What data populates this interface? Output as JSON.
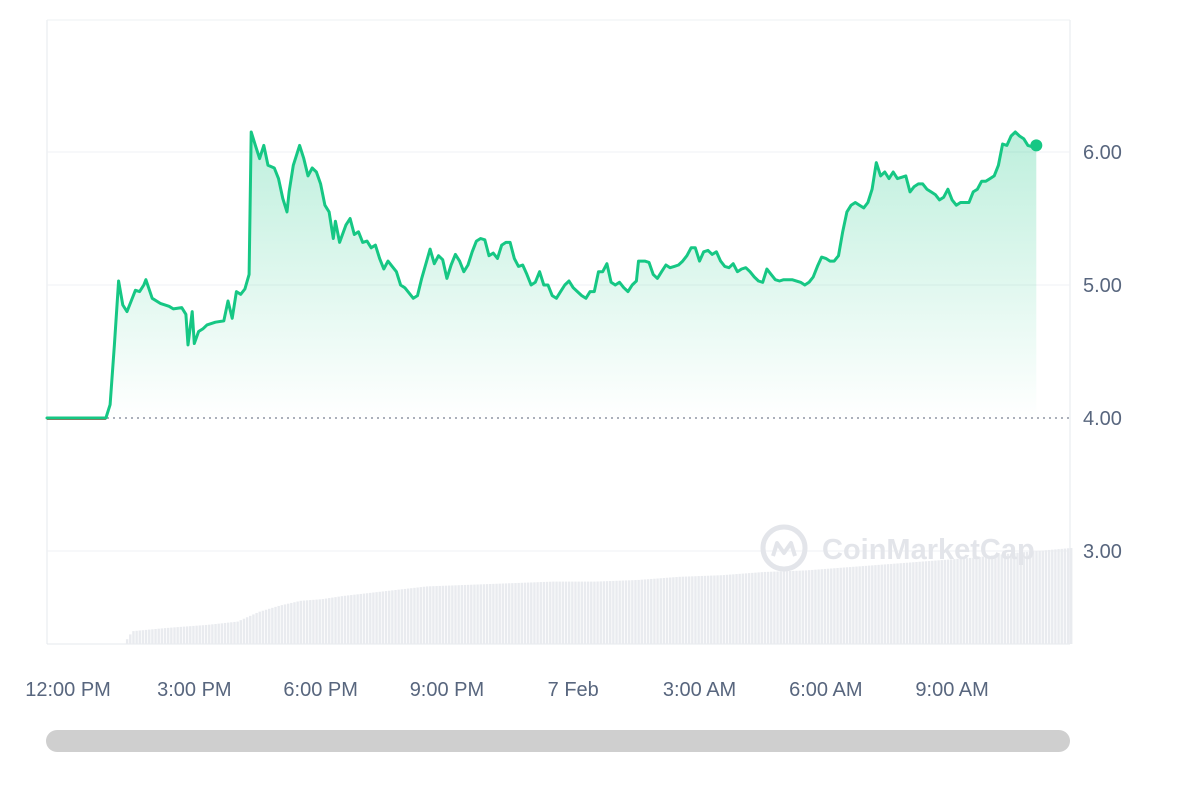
{
  "chart_data": {
    "type": "area",
    "watermark": "CoinMarketCap",
    "y_ticks": [
      "3.00",
      "4.00",
      "5.00",
      "6.00"
    ],
    "x_ticks": [
      "12:00 PM",
      "3:00 PM",
      "6:00 PM",
      "9:00 PM",
      "7 Feb",
      "3:00 AM",
      "6:00 AM",
      "9:00 AM"
    ],
    "ylim": [
      2.3,
      7.0
    ],
    "x_range_hours": [
      11.5,
      35.8
    ],
    "baseline": 4.0,
    "series": [
      {
        "values": [
          [
            11.5,
            4.0
          ],
          [
            12.0,
            4.0
          ],
          [
            12.5,
            4.0
          ],
          [
            12.9,
            4.0
          ],
          [
            13.0,
            4.1
          ],
          [
            13.1,
            4.55
          ],
          [
            13.2,
            5.03
          ],
          [
            13.3,
            4.85
          ],
          [
            13.4,
            4.8
          ],
          [
            13.5,
            4.88
          ],
          [
            13.6,
            4.96
          ],
          [
            13.7,
            4.95
          ],
          [
            13.8,
            5.0
          ],
          [
            13.85,
            5.04
          ],
          [
            14.0,
            4.9
          ],
          [
            14.2,
            4.86
          ],
          [
            14.4,
            4.84
          ],
          [
            14.5,
            4.82
          ],
          [
            14.7,
            4.83
          ],
          [
            14.8,
            4.78
          ],
          [
            14.85,
            4.55
          ],
          [
            14.95,
            4.8
          ],
          [
            15.0,
            4.56
          ],
          [
            15.1,
            4.65
          ],
          [
            15.2,
            4.67
          ],
          [
            15.3,
            4.7
          ],
          [
            15.5,
            4.72
          ],
          [
            15.7,
            4.73
          ],
          [
            15.8,
            4.88
          ],
          [
            15.9,
            4.75
          ],
          [
            16.0,
            4.95
          ],
          [
            16.1,
            4.93
          ],
          [
            16.2,
            4.97
          ],
          [
            16.3,
            5.08
          ],
          [
            16.35,
            6.15
          ],
          [
            16.45,
            6.05
          ],
          [
            16.55,
            5.95
          ],
          [
            16.65,
            6.05
          ],
          [
            16.75,
            5.9
          ],
          [
            16.9,
            5.88
          ],
          [
            17.0,
            5.8
          ],
          [
            17.1,
            5.65
          ],
          [
            17.2,
            5.55
          ],
          [
            17.25,
            5.7
          ],
          [
            17.35,
            5.9
          ],
          [
            17.5,
            6.05
          ],
          [
            17.6,
            5.95
          ],
          [
            17.7,
            5.82
          ],
          [
            17.8,
            5.88
          ],
          [
            17.9,
            5.85
          ],
          [
            18.0,
            5.76
          ],
          [
            18.1,
            5.6
          ],
          [
            18.2,
            5.55
          ],
          [
            18.3,
            5.35
          ],
          [
            18.35,
            5.48
          ],
          [
            18.45,
            5.32
          ],
          [
            18.6,
            5.45
          ],
          [
            18.7,
            5.5
          ],
          [
            18.8,
            5.38
          ],
          [
            18.9,
            5.4
          ],
          [
            19.0,
            5.32
          ],
          [
            19.1,
            5.33
          ],
          [
            19.2,
            5.28
          ],
          [
            19.3,
            5.3
          ],
          [
            19.4,
            5.2
          ],
          [
            19.5,
            5.12
          ],
          [
            19.6,
            5.18
          ],
          [
            19.7,
            5.14
          ],
          [
            19.8,
            5.1
          ],
          [
            19.9,
            5.0
          ],
          [
            20.0,
            4.98
          ],
          [
            20.2,
            4.9
          ],
          [
            20.3,
            4.92
          ],
          [
            20.4,
            5.05
          ],
          [
            20.6,
            5.27
          ],
          [
            20.7,
            5.16
          ],
          [
            20.8,
            5.22
          ],
          [
            20.9,
            5.19
          ],
          [
            21.0,
            5.05
          ],
          [
            21.1,
            5.15
          ],
          [
            21.2,
            5.23
          ],
          [
            21.3,
            5.18
          ],
          [
            21.4,
            5.1
          ],
          [
            21.5,
            5.15
          ],
          [
            21.6,
            5.25
          ],
          [
            21.7,
            5.33
          ],
          [
            21.8,
            5.35
          ],
          [
            21.9,
            5.34
          ],
          [
            22.0,
            5.22
          ],
          [
            22.1,
            5.24
          ],
          [
            22.2,
            5.2
          ],
          [
            22.3,
            5.3
          ],
          [
            22.4,
            5.32
          ],
          [
            22.5,
            5.32
          ],
          [
            22.6,
            5.2
          ],
          [
            22.7,
            5.14
          ],
          [
            22.8,
            5.15
          ],
          [
            22.9,
            5.08
          ],
          [
            23.0,
            5.0
          ],
          [
            23.1,
            5.02
          ],
          [
            23.2,
            5.1
          ],
          [
            23.3,
            5.0
          ],
          [
            23.4,
            5.0
          ],
          [
            23.5,
            4.92
          ],
          [
            23.6,
            4.9
          ],
          [
            23.7,
            4.95
          ],
          [
            23.8,
            5.0
          ],
          [
            23.9,
            5.03
          ],
          [
            24.0,
            4.98
          ],
          [
            24.1,
            4.95
          ],
          [
            24.2,
            4.92
          ],
          [
            24.3,
            4.9
          ],
          [
            24.4,
            4.95
          ],
          [
            24.5,
            4.95
          ],
          [
            24.6,
            5.1
          ],
          [
            24.7,
            5.1
          ],
          [
            24.8,
            5.16
          ],
          [
            24.9,
            5.02
          ],
          [
            25.0,
            5.0
          ],
          [
            25.1,
            5.02
          ],
          [
            25.2,
            4.98
          ],
          [
            25.3,
            4.95
          ],
          [
            25.4,
            5.0
          ],
          [
            25.5,
            5.03
          ],
          [
            25.55,
            5.18
          ],
          [
            25.7,
            5.18
          ],
          [
            25.8,
            5.17
          ],
          [
            25.9,
            5.08
          ],
          [
            26.0,
            5.05
          ],
          [
            26.1,
            5.1
          ],
          [
            26.2,
            5.15
          ],
          [
            26.3,
            5.13
          ],
          [
            26.4,
            5.14
          ],
          [
            26.5,
            5.15
          ],
          [
            26.6,
            5.18
          ],
          [
            26.7,
            5.22
          ],
          [
            26.8,
            5.28
          ],
          [
            26.9,
            5.28
          ],
          [
            27.0,
            5.18
          ],
          [
            27.1,
            5.25
          ],
          [
            27.2,
            5.26
          ],
          [
            27.3,
            5.23
          ],
          [
            27.4,
            5.25
          ],
          [
            27.5,
            5.18
          ],
          [
            27.6,
            5.14
          ],
          [
            27.7,
            5.13
          ],
          [
            27.8,
            5.16
          ],
          [
            27.9,
            5.1
          ],
          [
            28.0,
            5.12
          ],
          [
            28.1,
            5.13
          ],
          [
            28.2,
            5.1
          ],
          [
            28.3,
            5.06
          ],
          [
            28.4,
            5.03
          ],
          [
            28.5,
            5.02
          ],
          [
            28.6,
            5.12
          ],
          [
            28.7,
            5.08
          ],
          [
            28.8,
            5.04
          ],
          [
            28.9,
            5.03
          ],
          [
            29.0,
            5.04
          ],
          [
            29.2,
            5.04
          ],
          [
            29.4,
            5.02
          ],
          [
            29.5,
            5.0
          ],
          [
            29.6,
            5.02
          ],
          [
            29.7,
            5.06
          ],
          [
            29.8,
            5.14
          ],
          [
            29.9,
            5.21
          ],
          [
            30.0,
            5.2
          ],
          [
            30.1,
            5.18
          ],
          [
            30.2,
            5.18
          ],
          [
            30.3,
            5.22
          ],
          [
            30.4,
            5.4
          ],
          [
            30.5,
            5.55
          ],
          [
            30.6,
            5.6
          ],
          [
            30.7,
            5.62
          ],
          [
            30.8,
            5.6
          ],
          [
            30.9,
            5.58
          ],
          [
            31.0,
            5.62
          ],
          [
            31.1,
            5.72
          ],
          [
            31.2,
            5.92
          ],
          [
            31.3,
            5.82
          ],
          [
            31.4,
            5.85
          ],
          [
            31.5,
            5.8
          ],
          [
            31.6,
            5.85
          ],
          [
            31.7,
            5.8
          ],
          [
            31.8,
            5.81
          ],
          [
            31.9,
            5.82
          ],
          [
            32.0,
            5.7
          ],
          [
            32.1,
            5.74
          ],
          [
            32.2,
            5.76
          ],
          [
            32.3,
            5.76
          ],
          [
            32.4,
            5.72
          ],
          [
            32.5,
            5.7
          ],
          [
            32.6,
            5.68
          ],
          [
            32.7,
            5.64
          ],
          [
            32.8,
            5.66
          ],
          [
            32.9,
            5.72
          ],
          [
            33.0,
            5.64
          ],
          [
            33.1,
            5.6
          ],
          [
            33.2,
            5.62
          ],
          [
            33.3,
            5.62
          ],
          [
            33.4,
            5.62
          ],
          [
            33.5,
            5.7
          ],
          [
            33.6,
            5.72
          ],
          [
            33.7,
            5.78
          ],
          [
            33.8,
            5.78
          ],
          [
            33.9,
            5.8
          ],
          [
            34.0,
            5.82
          ],
          [
            34.1,
            5.9
          ],
          [
            34.2,
            6.06
          ],
          [
            34.3,
            6.05
          ],
          [
            34.4,
            6.12
          ],
          [
            34.5,
            6.15
          ],
          [
            34.6,
            6.12
          ],
          [
            34.7,
            6.1
          ],
          [
            34.8,
            6.05
          ],
          [
            34.9,
            6.04
          ],
          [
            35.0,
            6.05
          ]
        ]
      }
    ],
    "volume_profile": [
      [
        13.3,
        0.0
      ],
      [
        13.5,
        0.08
      ],
      [
        14.3,
        0.1
      ],
      [
        15.3,
        0.12
      ],
      [
        16.0,
        0.14
      ],
      [
        16.5,
        0.2
      ],
      [
        17.0,
        0.24
      ],
      [
        17.5,
        0.27
      ],
      [
        18.0,
        0.28
      ],
      [
        18.5,
        0.3
      ],
      [
        19.5,
        0.33
      ],
      [
        20.5,
        0.36
      ],
      [
        21.5,
        0.37
      ],
      [
        22.5,
        0.38
      ],
      [
        23.5,
        0.39
      ],
      [
        24.5,
        0.39
      ],
      [
        25.5,
        0.4
      ],
      [
        26.5,
        0.42
      ],
      [
        27.5,
        0.43
      ],
      [
        28.5,
        0.45
      ],
      [
        29.5,
        0.46
      ],
      [
        30.5,
        0.48
      ],
      [
        31.5,
        0.5
      ],
      [
        32.5,
        0.52
      ],
      [
        33.5,
        0.54
      ],
      [
        34.5,
        0.57
      ],
      [
        35.8,
        0.6
      ]
    ]
  }
}
